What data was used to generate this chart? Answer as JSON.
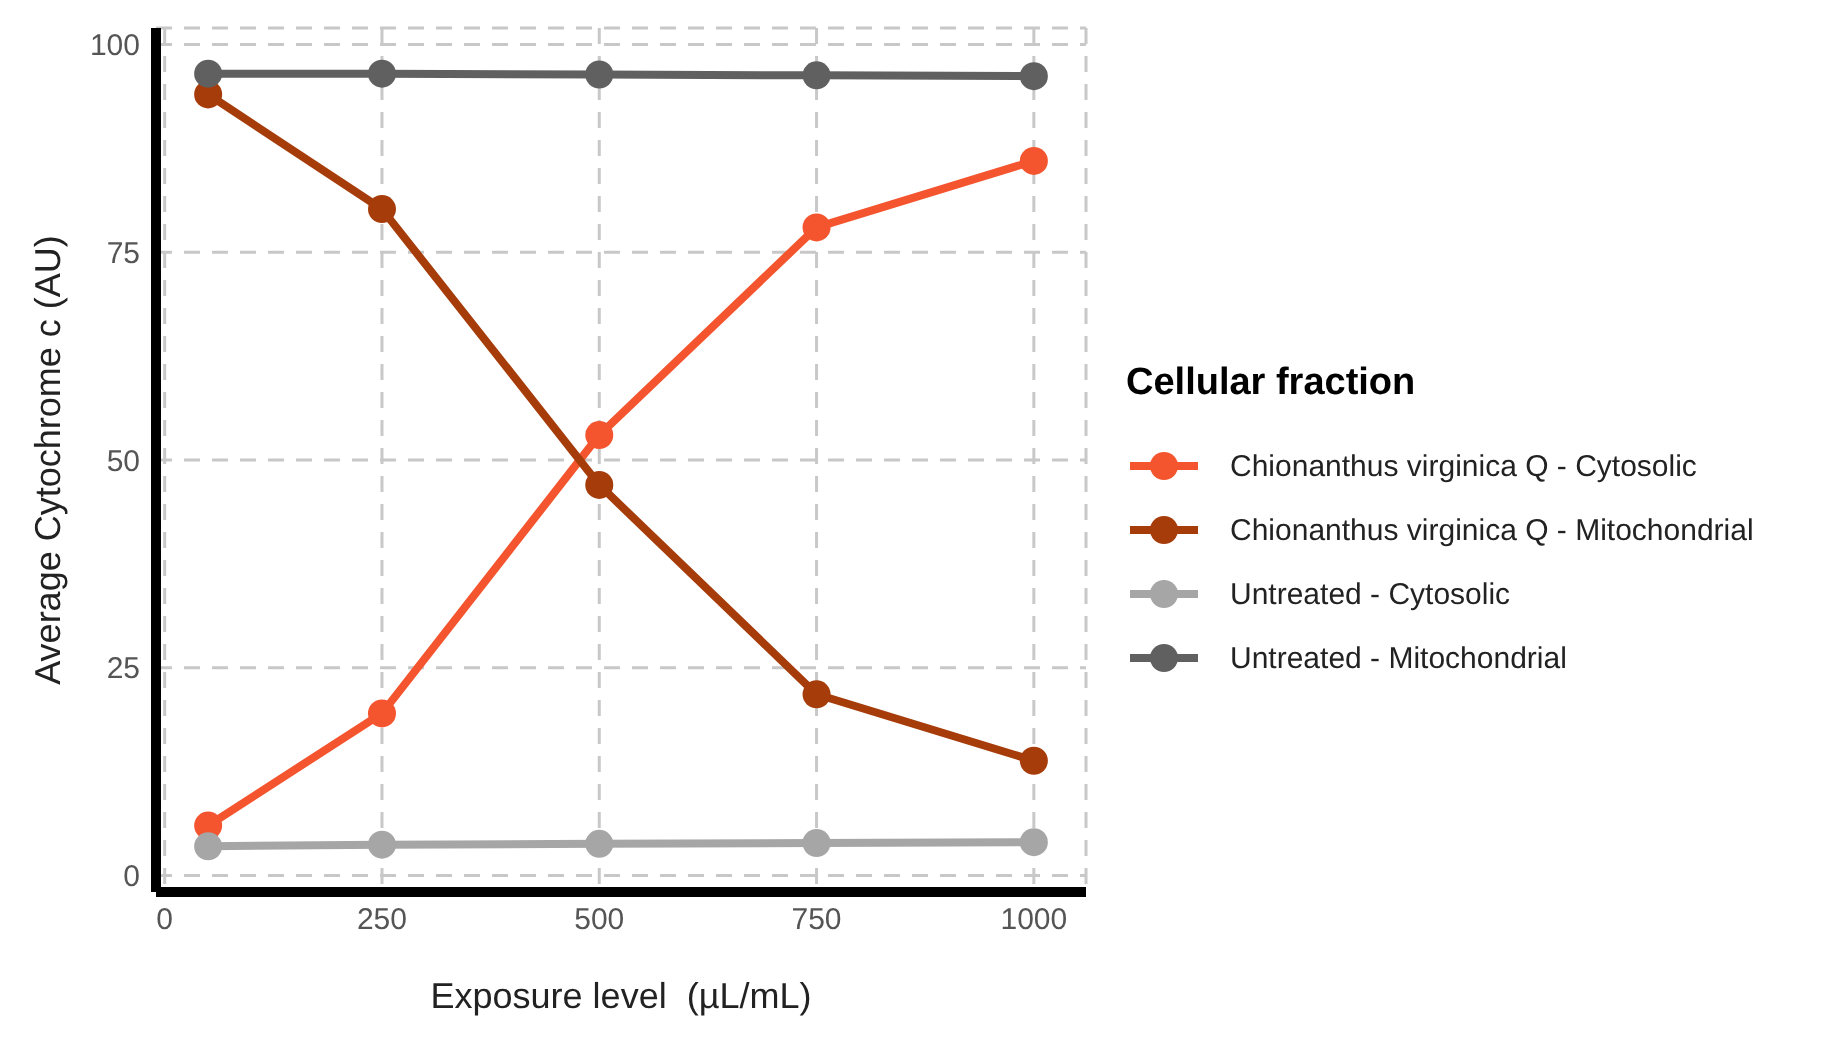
{
  "chart_data": {
    "type": "line",
    "xlabel": "Exposure level  (µL/mL)",
    "ylabel": "Average Cytochrome c (AU)",
    "legend_title": "Cellular fraction",
    "x": [
      50,
      250,
      500,
      750,
      1000
    ],
    "series": [
      {
        "name": "Chionanthus virginica Q - Cytosolic",
        "color": "#f4552f",
        "values": [
          6,
          19.5,
          53,
          78,
          86
        ]
      },
      {
        "name": "Chionanthus virginica Q - Mitochondrial",
        "color": "#a63c0a",
        "values": [
          94,
          80.2,
          47,
          21.8,
          13.8
        ]
      },
      {
        "name": "Untreated - Cytosolic",
        "color": "#a6a6a6",
        "values": [
          3.5,
          3.7,
          3.8,
          3.9,
          4
        ]
      },
      {
        "name": "Untreated - Mitochondrial",
        "color": "#606060",
        "values": [
          96.5,
          96.5,
          96.4,
          96.3,
          96.2
        ]
      }
    ],
    "xlim": [
      -10,
      1060
    ],
    "xticks": [
      0,
      250,
      500,
      750,
      1000
    ],
    "ylim": [
      -2,
      102
    ],
    "yticks": [
      0,
      25,
      50,
      75,
      100
    ],
    "grid": true,
    "legend": "right",
    "marker": "circle",
    "line_style": "solid"
  }
}
